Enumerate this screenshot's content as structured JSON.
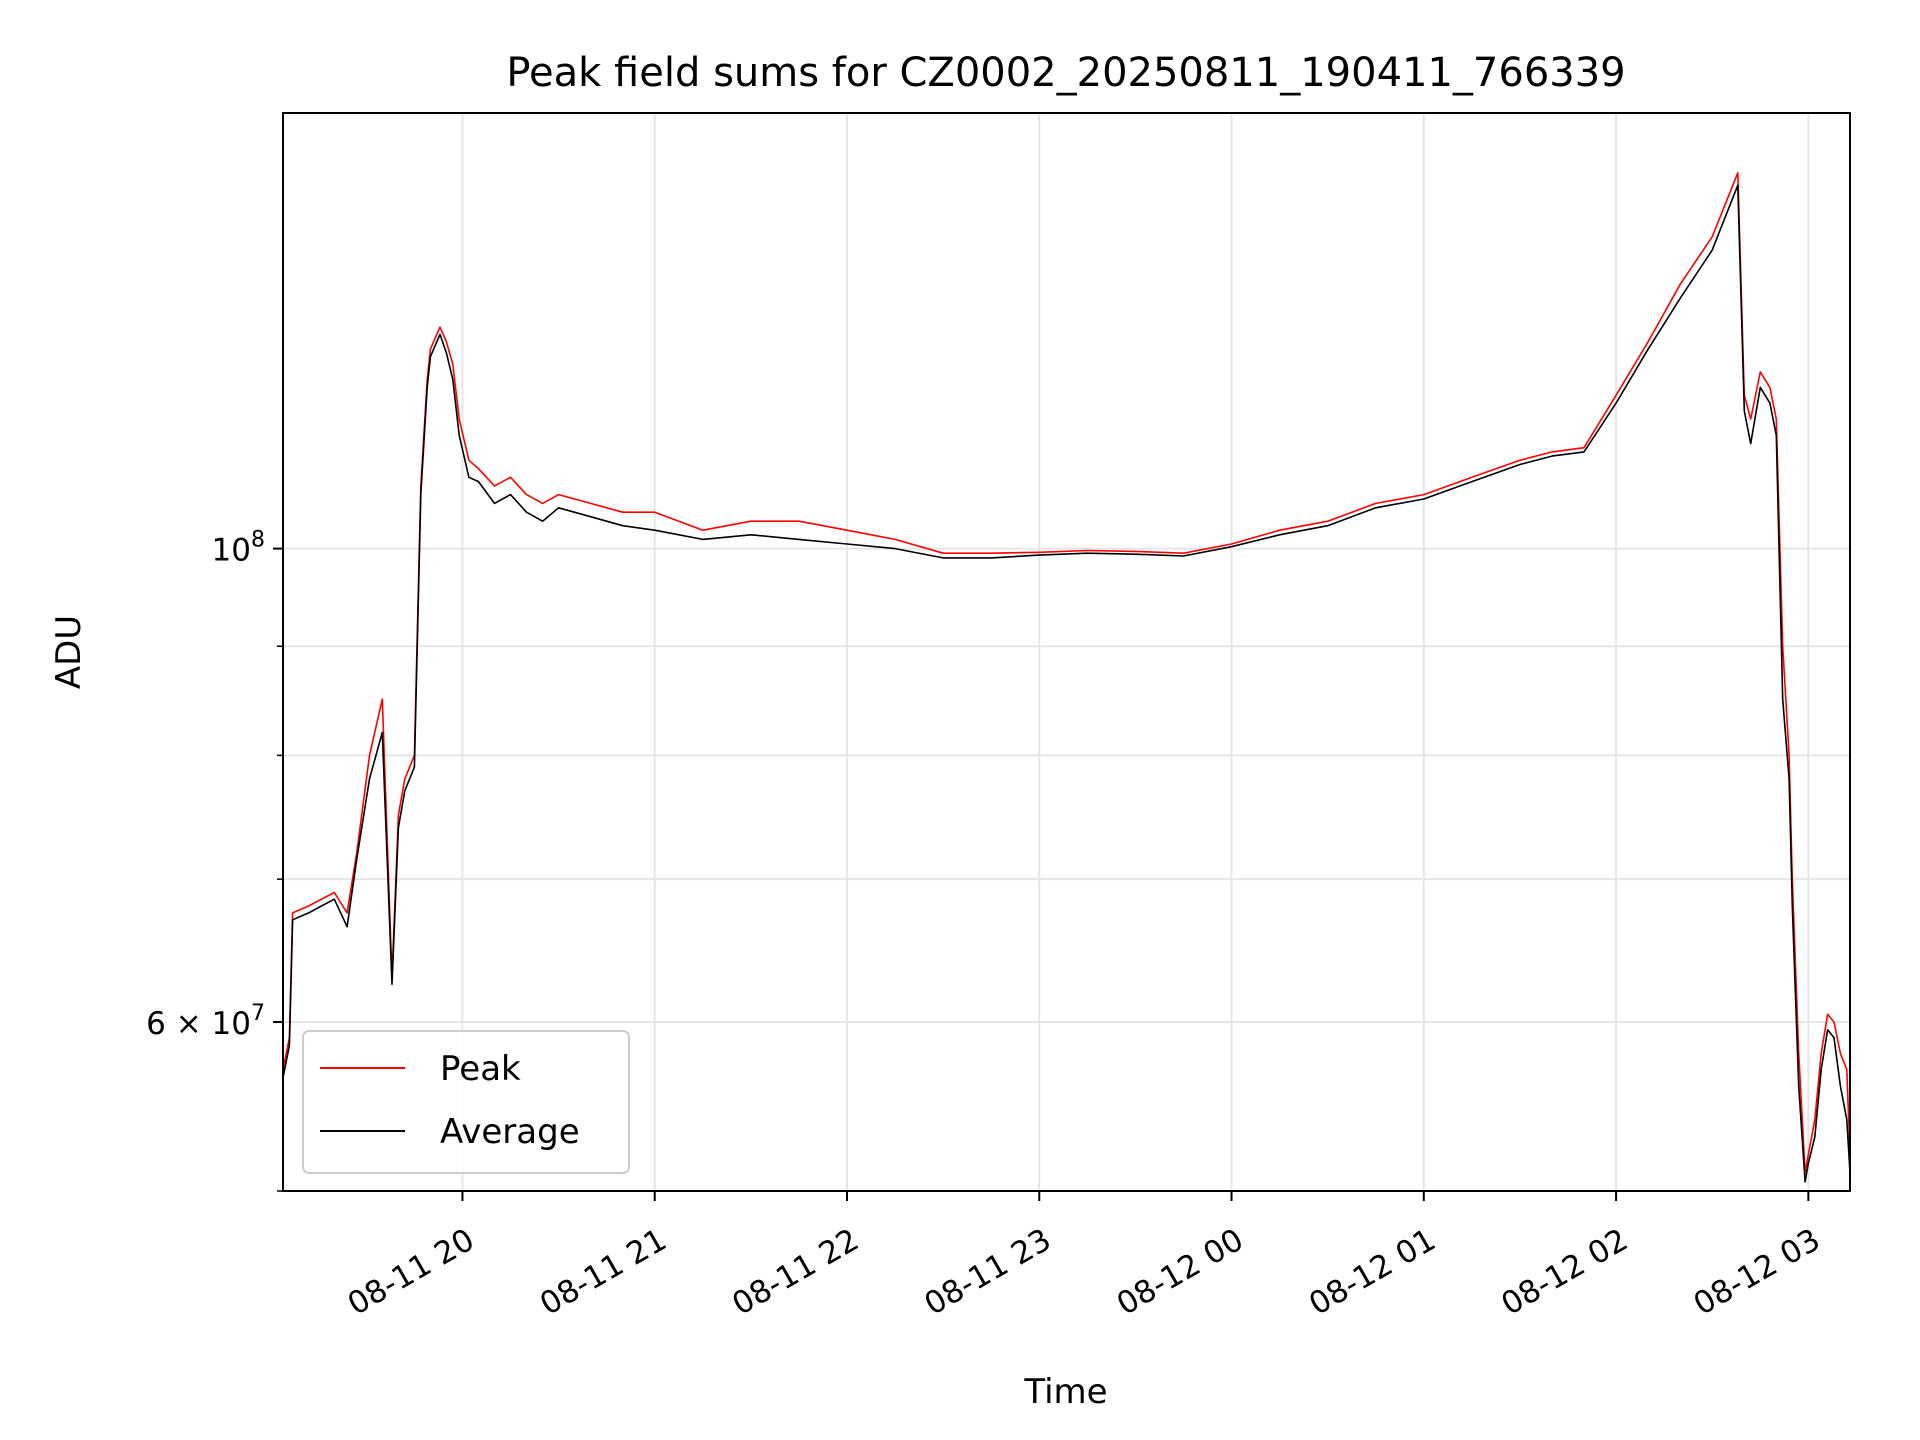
{
  "chart_data": {
    "type": "line",
    "title": "Peak field sums for CZ0002_20250811_190411_766339",
    "xlabel": "Time",
    "ylabel": "ADU",
    "y_scale": "log",
    "xlim": [
      "2025-08-11 19:04",
      "2025-08-12 03:13"
    ],
    "ylim": [
      50000000,
      160000000
    ],
    "x_ticks": [
      "08-11 20",
      "08-11 21",
      "08-11 22",
      "08-11 23",
      "08-12 00",
      "08-12 01",
      "08-12 02",
      "08-12 03"
    ],
    "x_tick_times": [
      "2025-08-11 20:00",
      "2025-08-11 21:00",
      "2025-08-11 22:00",
      "2025-08-11 23:00",
      "2025-08-12 00:00",
      "2025-08-12 01:00",
      "2025-08-12 02:00",
      "2025-08-12 03:00"
    ],
    "y_major_ticks": [
      {
        "value": 100000000,
        "mantissa": "",
        "exponent": "8"
      },
      {
        "value": 60000000,
        "mantissa": "6 × ",
        "exponent": "7"
      }
    ],
    "y_minor_grid": [
      50000000,
      70000000,
      80000000,
      90000000
    ],
    "grid": true,
    "legend_position": "lower-left",
    "series": [
      {
        "name": "Peak",
        "color": "#ff0000",
        "x": [
          "2025-08-11 19:04",
          "2025-08-11 19:06",
          "2025-08-11 19:07",
          "2025-08-11 19:12",
          "2025-08-11 19:16",
          "2025-08-11 19:20",
          "2025-08-11 19:24",
          "2025-08-11 19:27",
          "2025-08-11 19:31",
          "2025-08-11 19:35",
          "2025-08-11 19:38",
          "2025-08-11 19:40",
          "2025-08-11 19:42",
          "2025-08-11 19:45",
          "2025-08-11 19:47",
          "2025-08-11 19:49",
          "2025-08-11 19:50",
          "2025-08-11 19:53",
          "2025-08-11 19:55",
          "2025-08-11 19:57",
          "2025-08-11 19:59",
          "2025-08-11 20:02",
          "2025-08-11 20:05",
          "2025-08-11 20:10",
          "2025-08-11 20:15",
          "2025-08-11 20:20",
          "2025-08-11 20:25",
          "2025-08-11 20:30",
          "2025-08-11 20:40",
          "2025-08-11 20:50",
          "2025-08-11 21:00",
          "2025-08-11 21:15",
          "2025-08-11 21:30",
          "2025-08-11 21:45",
          "2025-08-11 22:00",
          "2025-08-11 22:15",
          "2025-08-11 22:30",
          "2025-08-11 22:45",
          "2025-08-11 23:00",
          "2025-08-11 23:15",
          "2025-08-11 23:30",
          "2025-08-11 23:45",
          "2025-08-12 00:00",
          "2025-08-12 00:15",
          "2025-08-12 00:30",
          "2025-08-12 00:45",
          "2025-08-12 01:00",
          "2025-08-12 01:15",
          "2025-08-12 01:30",
          "2025-08-12 01:40",
          "2025-08-12 01:50",
          "2025-08-12 02:00",
          "2025-08-12 02:10",
          "2025-08-12 02:20",
          "2025-08-12 02:30",
          "2025-08-12 02:38",
          "2025-08-12 02:40",
          "2025-08-12 02:42",
          "2025-08-12 02:45",
          "2025-08-12 02:48",
          "2025-08-12 02:50",
          "2025-08-12 02:52",
          "2025-08-12 02:54",
          "2025-08-12 02:55",
          "2025-08-12 02:57",
          "2025-08-12 02:59",
          "2025-08-12 03:00",
          "2025-08-12 03:02",
          "2025-08-12 03:04",
          "2025-08-12 03:06",
          "2025-08-12 03:08",
          "2025-08-12 03:10",
          "2025-08-12 03:12",
          "2025-08-12 03:13"
        ],
        "values": [
          57000000,
          59000000,
          67500000,
          68000000,
          68500000,
          69000000,
          67500000,
          72000000,
          80000000,
          85000000,
          63000000,
          75000000,
          78000000,
          80000000,
          107000000,
          120000000,
          124000000,
          127000000,
          125000000,
          122000000,
          115000000,
          110000000,
          109000000,
          107000000,
          108000000,
          106000000,
          105000000,
          106000000,
          105000000,
          104000000,
          104000000,
          102000000,
          103000000,
          103000000,
          102000000,
          101000000,
          99500000,
          99500000,
          99600000,
          99800000,
          99700000,
          99500000,
          100500000,
          102000000,
          103000000,
          105000000,
          106000000,
          108000000,
          110000000,
          111000000,
          111500000,
          118000000,
          125000000,
          133000000,
          140000000,
          150000000,
          118000000,
          115000000,
          121000000,
          119000000,
          115000000,
          90000000,
          80000000,
          70000000,
          58000000,
          51000000,
          52000000,
          54000000,
          58000000,
          60500000,
          60000000,
          58000000,
          57000000,
          52000000
        ]
      },
      {
        "name": "Average",
        "color": "#000000",
        "x": [
          "2025-08-11 19:04",
          "2025-08-11 19:06",
          "2025-08-11 19:07",
          "2025-08-11 19:12",
          "2025-08-11 19:16",
          "2025-08-11 19:20",
          "2025-08-11 19:24",
          "2025-08-11 19:27",
          "2025-08-11 19:31",
          "2025-08-11 19:35",
          "2025-08-11 19:38",
          "2025-08-11 19:40",
          "2025-08-11 19:42",
          "2025-08-11 19:45",
          "2025-08-11 19:47",
          "2025-08-11 19:49",
          "2025-08-11 19:50",
          "2025-08-11 19:53",
          "2025-08-11 19:55",
          "2025-08-11 19:57",
          "2025-08-11 19:59",
          "2025-08-11 20:02",
          "2025-08-11 20:05",
          "2025-08-11 20:10",
          "2025-08-11 20:15",
          "2025-08-11 20:20",
          "2025-08-11 20:25",
          "2025-08-11 20:30",
          "2025-08-11 20:40",
          "2025-08-11 20:50",
          "2025-08-11 21:00",
          "2025-08-11 21:15",
          "2025-08-11 21:30",
          "2025-08-11 21:45",
          "2025-08-11 22:00",
          "2025-08-11 22:15",
          "2025-08-11 22:30",
          "2025-08-11 22:45",
          "2025-08-11 23:00",
          "2025-08-11 23:15",
          "2025-08-11 23:30",
          "2025-08-11 23:45",
          "2025-08-12 00:00",
          "2025-08-12 00:15",
          "2025-08-12 00:30",
          "2025-08-12 00:45",
          "2025-08-12 01:00",
          "2025-08-12 01:15",
          "2025-08-12 01:30",
          "2025-08-12 01:40",
          "2025-08-12 01:50",
          "2025-08-12 02:00",
          "2025-08-12 02:10",
          "2025-08-12 02:20",
          "2025-08-12 02:30",
          "2025-08-12 02:38",
          "2025-08-12 02:40",
          "2025-08-12 02:42",
          "2025-08-12 02:45",
          "2025-08-12 02:48",
          "2025-08-12 02:50",
          "2025-08-12 02:52",
          "2025-08-12 02:54",
          "2025-08-12 02:55",
          "2025-08-12 02:57",
          "2025-08-12 02:59",
          "2025-08-12 03:00",
          "2025-08-12 03:02",
          "2025-08-12 03:04",
          "2025-08-12 03:06",
          "2025-08-12 03:08",
          "2025-08-12 03:10",
          "2025-08-12 03:12",
          "2025-08-12 03:13"
        ],
        "values": [
          56500000,
          58500000,
          67000000,
          67500000,
          68000000,
          68500000,
          66500000,
          71500000,
          78000000,
          82000000,
          62500000,
          74000000,
          77000000,
          79000000,
          106000000,
          119000000,
          123000000,
          126000000,
          123500000,
          120000000,
          113000000,
          108000000,
          107500000,
          105000000,
          106000000,
          104000000,
          103000000,
          104500000,
          103500000,
          102500000,
          102000000,
          101000000,
          101500000,
          101000000,
          100500000,
          100000000,
          99000000,
          99000000,
          99300000,
          99500000,
          99400000,
          99200000,
          100200000,
          101500000,
          102500000,
          104500000,
          105500000,
          107500000,
          109500000,
          110500000,
          111000000,
          117000000,
          124000000,
          131000000,
          138000000,
          148000000,
          116000000,
          112000000,
          119000000,
          117000000,
          113000000,
          85000000,
          78000000,
          68000000,
          56000000,
          50500000,
          51500000,
          53000000,
          57000000,
          59500000,
          59000000,
          56000000,
          54000000,
          51000000
        ]
      }
    ]
  }
}
